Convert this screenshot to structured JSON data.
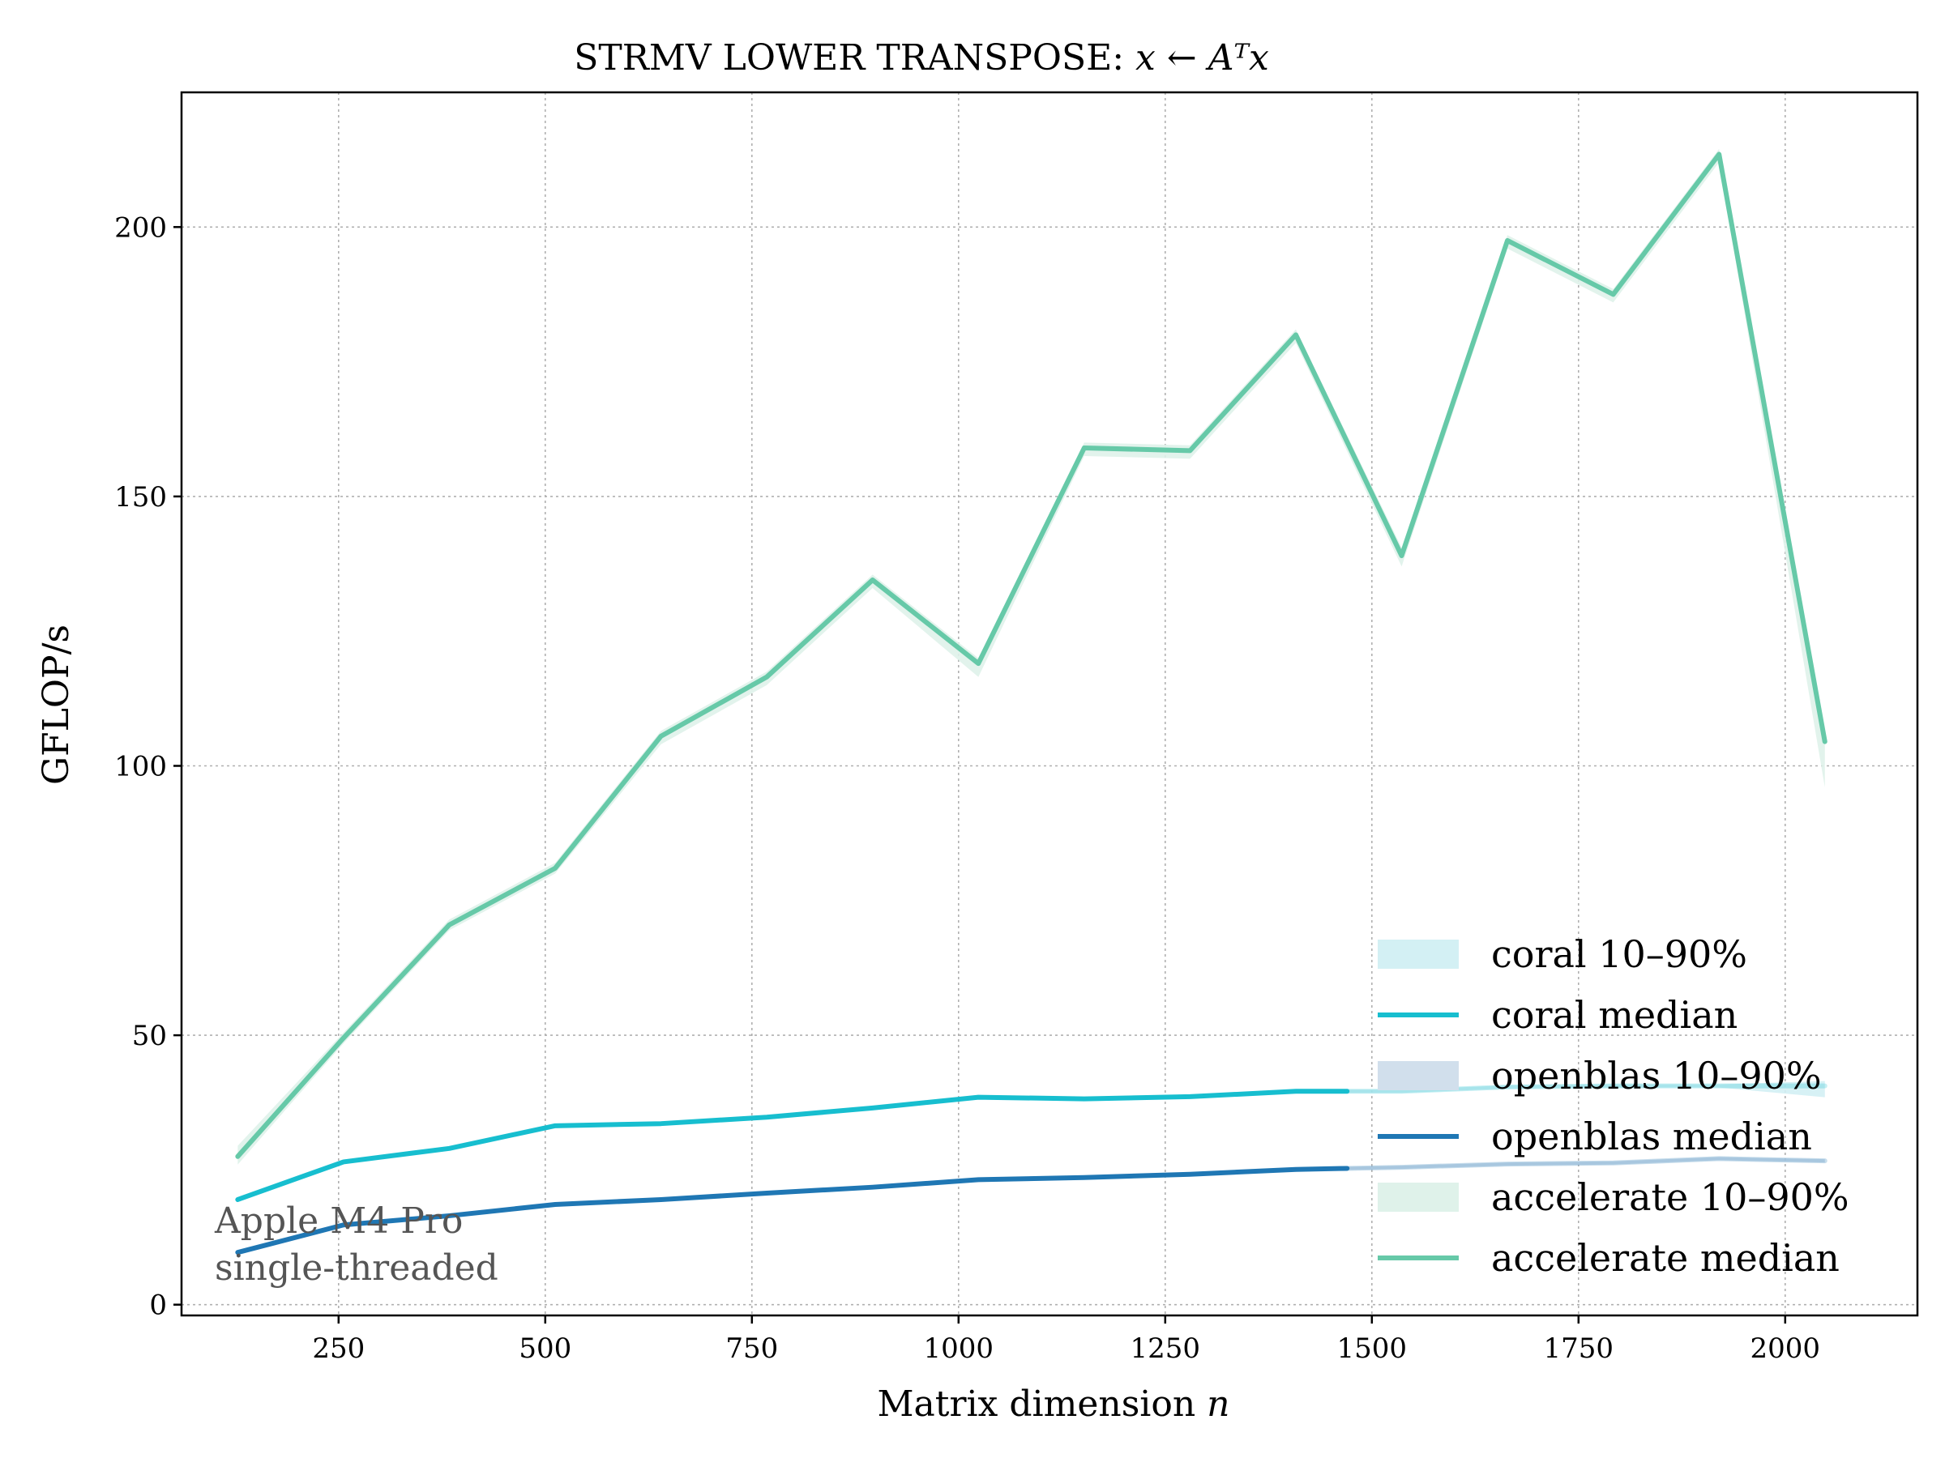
{
  "chart_data": {
    "type": "line",
    "title_text": "STRMV LOWER TRANSPOSE: ",
    "title_math": "x ← Aᵀx",
    "xlabel_text": "Matrix dimension ",
    "xlabel_math": "n",
    "ylabel": "GFLOP/s",
    "xlim": [
      60,
      2160
    ],
    "ylim": [
      -2,
      225
    ],
    "xticks": [
      250,
      500,
      750,
      1000,
      1250,
      1500,
      1750,
      2000
    ],
    "yticks": [
      0,
      50,
      100,
      150,
      200
    ],
    "grid": true,
    "legend_position": "lower-right",
    "annotation": [
      "Apple M4 Pro",
      "single-threaded"
    ],
    "x": [
      128,
      256,
      384,
      512,
      640,
      768,
      896,
      1024,
      1152,
      1280,
      1408,
      1536,
      1664,
      1792,
      1920,
      2048
    ],
    "series": [
      {
        "name": "coral median",
        "band_name": "coral 10–90%",
        "color": "#17becf",
        "band_color": "#d3f0f4",
        "values": [
          19.5,
          26.5,
          29,
          33.2,
          33.6,
          34.8,
          36.5,
          38.5,
          38.2,
          38.6,
          39.6,
          39.6,
          40.4,
          40.6,
          40.6,
          40.6
        ],
        "low": [
          19.2,
          26.2,
          28.7,
          32.9,
          33.3,
          34.5,
          36.2,
          38.2,
          37.9,
          38.3,
          39.3,
          39.3,
          40.1,
          40.3,
          40.3,
          38.5
        ],
        "high": [
          19.8,
          26.8,
          29.3,
          33.5,
          33.9,
          35.1,
          36.8,
          38.8,
          38.5,
          38.9,
          39.9,
          39.9,
          40.7,
          40.9,
          40.9,
          41.5
        ],
        "faded_after": 1470
      },
      {
        "name": "openblas median",
        "band_name": "openblas 10–90%",
        "color": "#1f77b4",
        "band_color": "#d1dfec",
        "values": [
          9.7,
          14.8,
          16.5,
          18.6,
          19.5,
          20.7,
          21.8,
          23.2,
          23.6,
          24.2,
          25.1,
          25.5,
          26.1,
          26.3,
          27.1,
          26.7
        ],
        "low": [
          9.4,
          14.5,
          16.2,
          18.3,
          19.2,
          20.4,
          21.5,
          22.9,
          23.3,
          23.9,
          24.8,
          25.2,
          25.8,
          26.0,
          26.8,
          26.4
        ],
        "high": [
          10.0,
          15.1,
          16.8,
          18.9,
          19.8,
          21.0,
          22.1,
          23.5,
          23.9,
          24.5,
          25.4,
          25.8,
          26.4,
          26.6,
          27.4,
          27.0
        ],
        "faded_after": 1470
      },
      {
        "name": "accelerate median",
        "band_name": "accelerate 10–90%",
        "color": "#66c9a8",
        "band_color": "#dff2ea",
        "values": [
          27.5,
          49.5,
          70.5,
          81,
          105.5,
          116.5,
          134.5,
          119,
          159,
          158.5,
          180,
          139,
          197.5,
          187.5,
          213.5,
          104.5
        ],
        "low": [
          26.0,
          48.5,
          69.5,
          80.0,
          104.0,
          115.0,
          133.0,
          116.5,
          157.5,
          157.0,
          178.5,
          137.0,
          196.0,
          186.0,
          212.0,
          96.0
        ],
        "high": [
          29.5,
          50.5,
          71.5,
          82.0,
          106.5,
          117.5,
          135.5,
          120.0,
          160.0,
          159.5,
          181.0,
          140.5,
          198.5,
          188.5,
          214.5,
          106.0
        ],
        "faded_after": null
      }
    ]
  }
}
